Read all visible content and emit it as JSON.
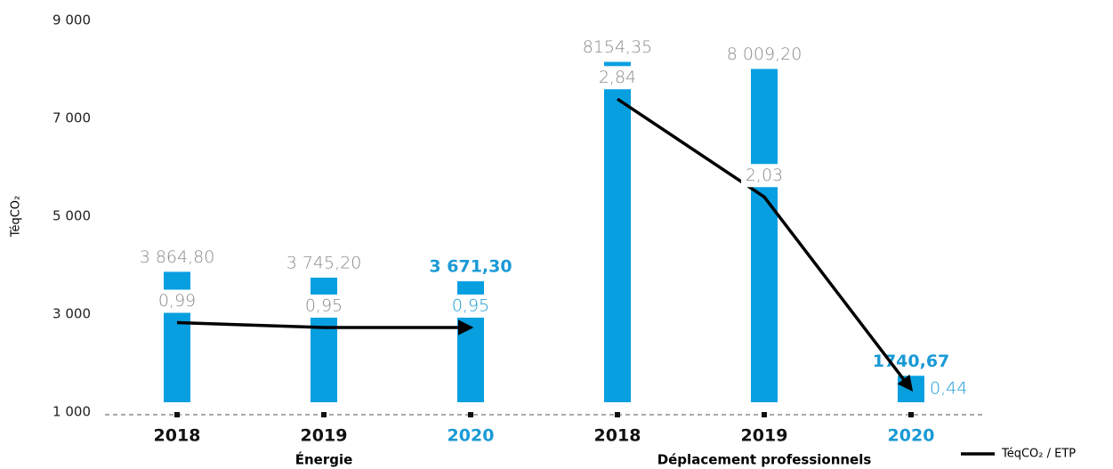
{
  "chart_data": {
    "type": "bar",
    "y_axis_label": "TéqCO₂",
    "categories": [
      "2018",
      "2019",
      "2020",
      "2018",
      "2019",
      "2020"
    ],
    "category_label_colors": [
      "#111111",
      "#111111",
      "#1a9ad6",
      "#111111",
      "#111111",
      "#1a9ad6"
    ],
    "groups": [
      {
        "name": "Énergie",
        "categories": [
          0,
          1,
          2
        ]
      },
      {
        "name": "Déplacement professionnels",
        "categories": [
          3,
          4,
          5
        ]
      }
    ],
    "series": [
      {
        "name": "TéqCO₂",
        "color": "#079fe0",
        "values": [
          3864.8,
          3745.2,
          3671.3,
          8154.35,
          8009.2,
          1740.67
        ],
        "value_labels": [
          "3 864,80",
          "3 745,20",
          "3 671,30",
          "8154,35",
          "8 009,20",
          "1740,67"
        ]
      },
      {
        "name": "TéqCO₂ / ETP",
        "type": "line",
        "axis": "y2",
        "color": "#000000",
        "values": [
          0.99,
          0.95,
          0.95,
          2.84,
          2.03,
          0.44
        ],
        "value_labels": [
          "0,99",
          "0,95",
          "0,95",
          "2,84",
          "2,03",
          "0,44"
        ]
      }
    ],
    "ylim": [
      1000,
      9000
    ],
    "yticks": [
      {
        "value": 1000,
        "label": "1 000"
      },
      {
        "value": 3000,
        "label": "3 000"
      },
      {
        "value": 5000,
        "label": "5 000"
      },
      {
        "value": 7000,
        "label": "7 000"
      },
      {
        "value": 9000,
        "label": "9 000"
      }
    ],
    "y2lim": [
      0.25,
      3.49
    ],
    "legend": "bottom-right"
  }
}
